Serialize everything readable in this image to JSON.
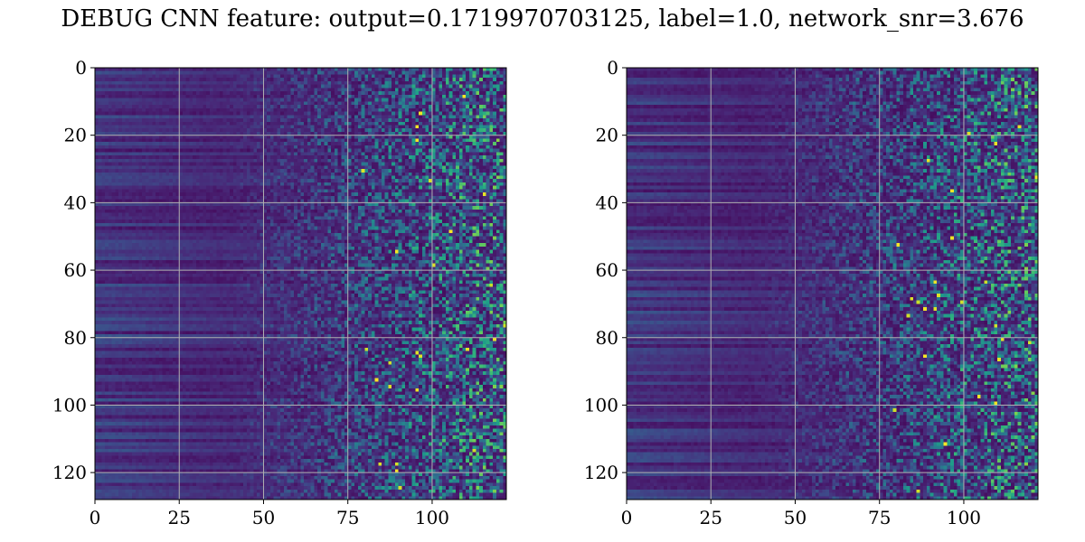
{
  "title": "DEBUG CNN feature: output=0.1719970703125, label=1.0, network_snr=3.676",
  "colormap": "viridis",
  "colors": {
    "viridis": [
      "#440154",
      "#482878",
      "#3e4989",
      "#31688e",
      "#26828e",
      "#1f9e89",
      "#35b779",
      "#6ece58",
      "#b5de2b",
      "#fde725"
    ],
    "grid": "#b0b0b0",
    "axis": "#000000"
  },
  "chart_data": [
    {
      "type": "heatmap",
      "grid": true,
      "xlim": [
        0,
        122
      ],
      "ylim": [
        128,
        0
      ],
      "xticks": [
        0,
        25,
        50,
        75,
        100
      ],
      "yticks": [
        0,
        20,
        40,
        60,
        80,
        100,
        120
      ],
      "rows": 128,
      "cols": 122,
      "noise_seed": 17
    },
    {
      "type": "heatmap",
      "grid": true,
      "xlim": [
        0,
        122
      ],
      "ylim": [
        128,
        0
      ],
      "xticks": [
        0,
        25,
        50,
        75,
        100
      ],
      "yticks": [
        0,
        20,
        40,
        60,
        80,
        100,
        120
      ],
      "rows": 128,
      "cols": 122,
      "noise_seed": 53
    }
  ]
}
